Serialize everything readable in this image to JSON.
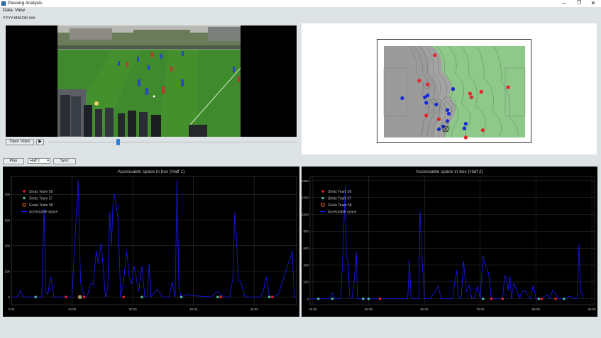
{
  "window": {
    "title": "Passing Analysis",
    "minimize": "─",
    "maximize": "❐",
    "close": "✕",
    "app_icon": "grid-app-icon"
  },
  "menu": {
    "items": [
      "Data",
      "View"
    ]
  },
  "date_label": "YYYY-MM-DD ###",
  "video_controls": {
    "open_label": "Open Video",
    "play_icon": "play-icon",
    "position_fraction": 0.28
  },
  "sync_controls": {
    "play_label": "Play",
    "half_selected": "Half 1",
    "sync_label": "Sync"
  },
  "colors": {
    "accent": "#2b7fd8",
    "team_a": "#e8202a",
    "team_b": "#1428d8",
    "line": "#1a1aff",
    "goal": "#ff7a1a",
    "chart_text": "#bdbdbd",
    "grid": "#3a3a3a"
  },
  "chart_data": [
    {
      "type": "line",
      "title": "Accessable space in box (Half 1)",
      "xlabel": "",
      "ylabel": "",
      "xlim": [
        0,
        47
      ],
      "ylim": [
        -30,
        470
      ],
      "x_ticks": [
        0,
        10,
        20,
        30,
        40
      ],
      "x_tick_labels": [
        "0:00",
        "10:00",
        "20:00",
        "30:00",
        "40:00"
      ],
      "y_ticks": [
        0,
        100,
        200,
        300,
        400
      ],
      "y_tick_labels": [
        "0",
        "100",
        "200",
        "300",
        "400"
      ],
      "legend": [
        "Shots Team 58",
        "Shots Team 57",
        "Goals Team 58",
        "Accessable space"
      ],
      "legend_position": "top-left",
      "grid": true,
      "series": [
        {
          "name": "Accessable space",
          "x": [
            0,
            1,
            1.5,
            2,
            5,
            5.4,
            5.7,
            6,
            6.2,
            6.5,
            7,
            10,
            10.5,
            11,
            11.4,
            11.7,
            12,
            12.3,
            12.6,
            13,
            13.5,
            14,
            14.3,
            14.8,
            15.5,
            15.9,
            16.2,
            16.5,
            16.8,
            17,
            17.3,
            17.6,
            18,
            18.5,
            19,
            19.4,
            19.8,
            20.2,
            21,
            21.5,
            22,
            22.4,
            22.7,
            23,
            24,
            25,
            26,
            26.5,
            27,
            27.3,
            27.6,
            28,
            29,
            30,
            33,
            33.5,
            34,
            35,
            36,
            36.5,
            36.8,
            37.1,
            37.4,
            37.8,
            38.5,
            41,
            41.5,
            42,
            42.5,
            43,
            44,
            46.3,
            46.6,
            47
          ],
          "y": [
            0,
            0,
            25,
            0,
            0,
            345,
            20,
            10,
            40,
            80,
            0,
            0,
            230,
            455,
            60,
            30,
            0,
            0,
            10,
            50,
            50,
            180,
            130,
            210,
            0,
            40,
            330,
            200,
            400,
            400,
            350,
            300,
            0,
            60,
            180,
            80,
            50,
            120,
            20,
            120,
            0,
            0,
            130,
            0,
            30,
            0,
            0,
            60,
            0,
            458,
            40,
            0,
            10,
            5,
            0,
            15,
            20,
            0,
            0,
            75,
            330,
            230,
            60,
            60,
            0,
            0,
            20,
            80,
            0,
            0,
            10,
            180,
            0,
            0
          ]
        },
        {
          "name": "Shots Team 58",
          "x": [
            9,
            12,
            18.5,
            34.5,
            43
          ],
          "y": [
            0,
            0,
            0,
            0,
            0
          ]
        },
        {
          "name": "Shots Team 57",
          "x": [
            4,
            11.3,
            21.5,
            28,
            34,
            42.5
          ],
          "y": [
            0,
            0,
            0,
            0,
            0,
            0
          ]
        },
        {
          "name": "Goals Team 58",
          "x": [
            11.3
          ],
          "y": [
            0
          ]
        }
      ]
    },
    {
      "type": "line",
      "title": "Accessable space in box (Half 2)",
      "xlabel": "",
      "ylabel": "",
      "xlim": [
        44.5,
        95.5
      ],
      "ylim": [
        -70,
        1450
      ],
      "x_ticks": [
        45,
        55,
        65,
        75,
        85,
        95
      ],
      "x_tick_labels": [
        "45:00",
        "55:00",
        "65:00",
        "75:00",
        "85:00",
        "95:00"
      ],
      "y_ticks": [
        0,
        200,
        400,
        600,
        800,
        1000,
        1200,
        1400
      ],
      "y_tick_labels": [
        "0",
        "200",
        "400",
        "600",
        "800",
        "1000",
        "1200",
        "1400"
      ],
      "legend": [
        "Shots Team 58",
        "Shots Team 57",
        "Goals Team 58",
        "Accessable space"
      ],
      "legend_position": "top-left",
      "grid": true,
      "series": [
        {
          "name": "Accessable space",
          "x": [
            44.5,
            48,
            48.5,
            49,
            50,
            50.3,
            50.6,
            50.8,
            51,
            51.3,
            51.6,
            52,
            52.4,
            52.8,
            53,
            55,
            62,
            62.3,
            62.6,
            63,
            64,
            64.2,
            64.6,
            65,
            66,
            67,
            67.5,
            68,
            70,
            70.4,
            70.8,
            71,
            71.3,
            71.6,
            72,
            72.5,
            73,
            73.5,
            74,
            74.5,
            75,
            75.5,
            76,
            76.5,
            77,
            78,
            79,
            79.4,
            79.8,
            80,
            80.3,
            80.6,
            81,
            81.5,
            82,
            82.5,
            83,
            84,
            84.5,
            85,
            86,
            87,
            87.5,
            88,
            88.5,
            89,
            90,
            91,
            92,
            92.4,
            92.7,
            93,
            93.5
          ],
          "y": [
            0,
            0,
            70,
            0,
            0,
            420,
            950,
            1350,
            500,
            460,
            20,
            0,
            200,
            550,
            0,
            0,
            0,
            460,
            30,
            0,
            0,
            1040,
            450,
            0,
            0,
            100,
            150,
            0,
            0,
            180,
            340,
            60,
            0,
            30,
            450,
            80,
            160,
            0,
            20,
            150,
            0,
            510,
            380,
            300,
            0,
            0,
            0,
            280,
            200,
            100,
            270,
            0,
            180,
            120,
            0,
            80,
            100,
            0,
            160,
            0,
            0,
            50,
            0,
            100,
            60,
            0,
            0,
            30,
            0,
            0,
            650,
            100,
            0
          ]
        },
        {
          "name": "Shots Team 58",
          "x": [
            57,
            77,
            79,
            86,
            88.5
          ],
          "y": [
            0,
            0,
            0,
            0,
            0
          ]
        },
        {
          "name": "Shots Team 57",
          "x": [
            46,
            48.5,
            54,
            55,
            75.5,
            85.5,
            90
          ],
          "y": [
            0,
            0,
            0,
            0,
            0,
            0,
            0
          ]
        },
        {
          "name": "Goals Team 58",
          "x": [],
          "y": []
        }
      ]
    }
  ],
  "pitch": {
    "team_red": [
      [
        36,
        10
      ],
      [
        25,
        38
      ],
      [
        31,
        42
      ],
      [
        61,
        52
      ],
      [
        69,
        50
      ],
      [
        62,
        56
      ],
      [
        58,
        100
      ],
      [
        30,
        76
      ],
      [
        39,
        80
      ],
      [
        49,
        47
      ],
      [
        57,
        90
      ],
      [
        70,
        92
      ],
      [
        88,
        45
      ]
    ],
    "team_blue": [
      [
        31,
        54
      ],
      [
        13,
        57
      ],
      [
        49,
        47
      ],
      [
        30,
        62
      ],
      [
        37,
        64
      ],
      [
        45,
        82
      ],
      [
        57,
        90
      ],
      [
        29,
        56
      ],
      [
        42,
        88
      ],
      [
        39,
        91
      ],
      [
        58,
        85
      ],
      [
        45,
        70
      ],
      [
        46,
        74
      ]
    ]
  }
}
